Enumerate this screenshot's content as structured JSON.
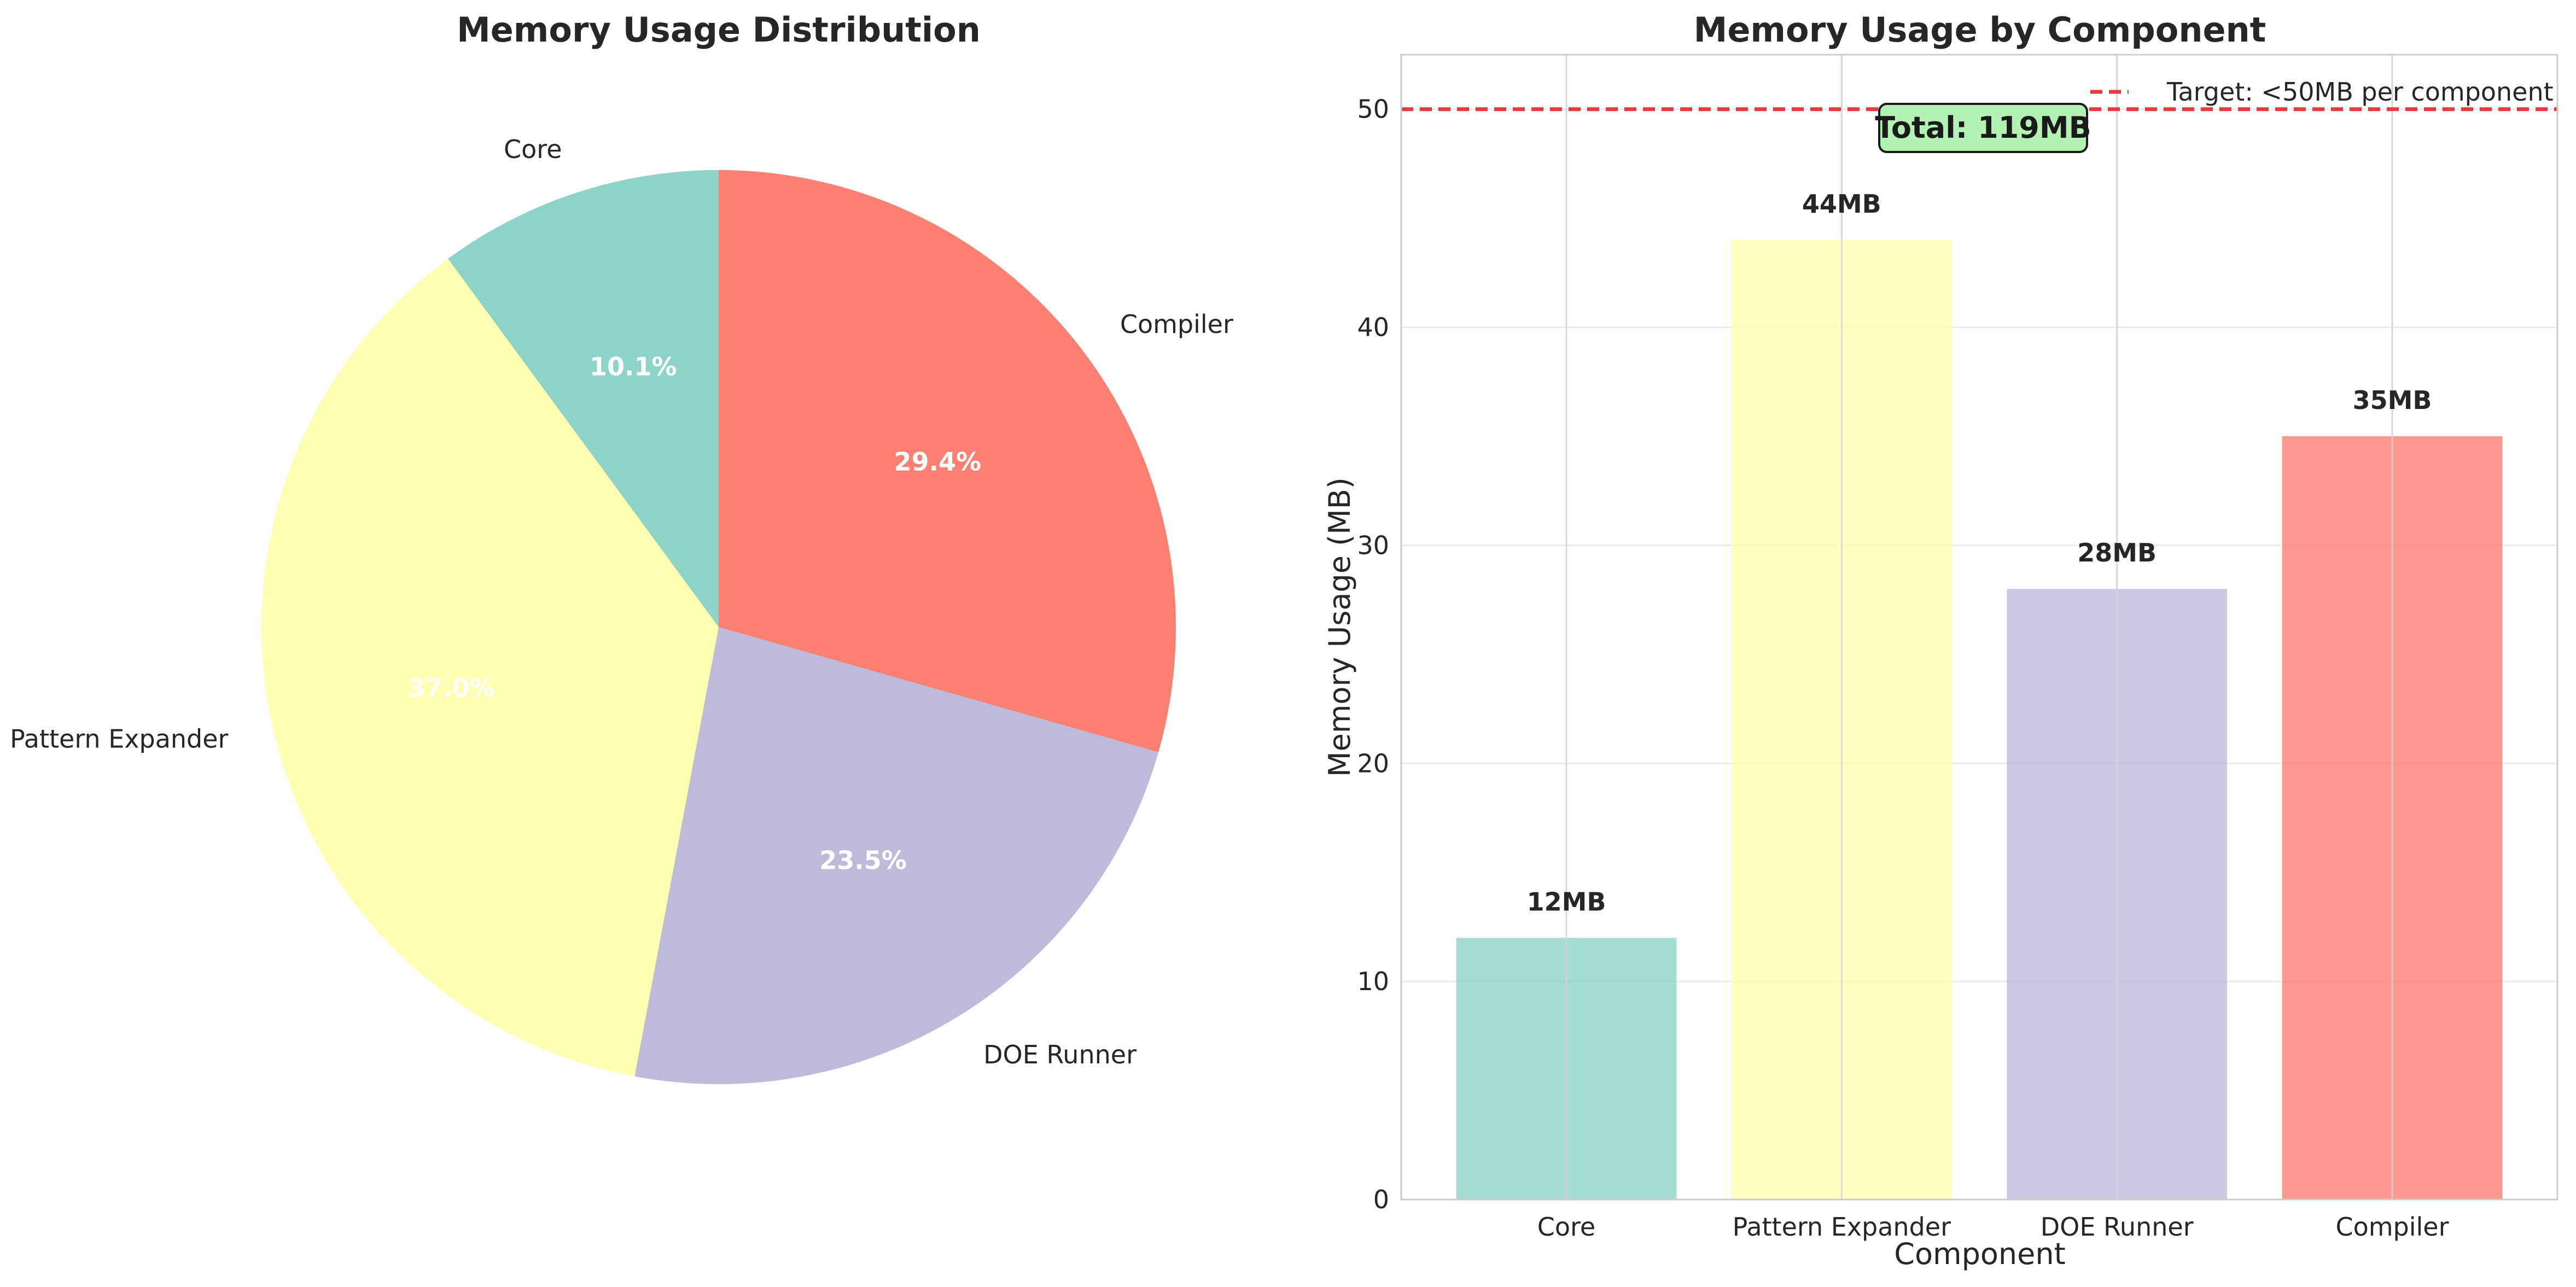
{
  "chart_data": [
    {
      "type": "pie",
      "title": "Memory Usage Distribution",
      "categories": [
        "Core",
        "Pattern Expander",
        "DOE Runner",
        "Compiler"
      ],
      "values": [
        12,
        44,
        28,
        35
      ],
      "percent_labels": [
        "10.1%",
        "37.0%",
        "23.5%",
        "29.4%"
      ],
      "colors": [
        "#8dd3c7",
        "#ffffb3",
        "#bebada",
        "#fb8072"
      ],
      "start_angle_deg": 90,
      "direction": "counterclockwise"
    },
    {
      "type": "bar",
      "title": "Memory Usage by Component",
      "xlabel": "Component",
      "ylabel": "Memory Usage (MB)",
      "categories": [
        "Core",
        "Pattern Expander",
        "DOE Runner",
        "Compiler"
      ],
      "values": [
        12,
        44,
        28,
        35
      ],
      "value_labels": [
        "12MB",
        "44MB",
        "28MB",
        "35MB"
      ],
      "colors": [
        "#8dd3c7",
        "#ffffb3",
        "#bebada",
        "#fb8072"
      ],
      "ylim": [
        0,
        52.5
      ],
      "yticks": [
        0,
        10,
        20,
        30,
        40,
        50
      ],
      "grid": true,
      "reference_line": {
        "value": 50,
        "label": "Target: <50MB per component",
        "color": "#e8393c",
        "style": "dashed"
      },
      "annotation": {
        "text": "Total: 119MB",
        "background": "#b2f2b2"
      },
      "legend_position": "top-right"
    }
  ]
}
